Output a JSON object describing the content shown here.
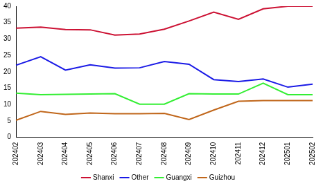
{
  "chart_data": {
    "type": "line",
    "categories": [
      "202402",
      "202403",
      "202404",
      "202405",
      "202406",
      "202407",
      "202408",
      "202409",
      "202410",
      "202411",
      "202412",
      "202501",
      "202502"
    ],
    "series": [
      {
        "name": "Shanxi",
        "color": "#cc1133",
        "values": [
          33.3,
          33.6,
          32.9,
          32.8,
          31.2,
          31.5,
          33.0,
          35.5,
          38.2,
          36.0,
          39.2,
          40.0,
          40.0
        ]
      },
      {
        "name": "Other",
        "color": "#1a1ae6",
        "values": [
          22.0,
          24.6,
          20.5,
          22.1,
          21.1,
          21.2,
          23.1,
          22.3,
          17.6,
          17.0,
          17.8,
          15.3,
          16.2
        ]
      },
      {
        "name": "Guangxi",
        "color": "#33ee33",
        "values": [
          13.5,
          13.0,
          13.1,
          13.2,
          13.3,
          10.1,
          10.1,
          13.3,
          13.2,
          13.2,
          16.5,
          13.0,
          13.0
        ]
      },
      {
        "name": "Guizhou",
        "color": "#c0661a",
        "values": [
          5.2,
          7.9,
          7.0,
          7.4,
          7.2,
          7.2,
          7.3,
          5.4,
          8.3,
          11.0,
          11.2,
          11.2,
          11.2
        ]
      }
    ],
    "ylim": [
      0,
      40
    ],
    "yticks": [
      0,
      5,
      10,
      15,
      20,
      25,
      30,
      35,
      40
    ],
    "grid": false,
    "legend": "bottom"
  }
}
